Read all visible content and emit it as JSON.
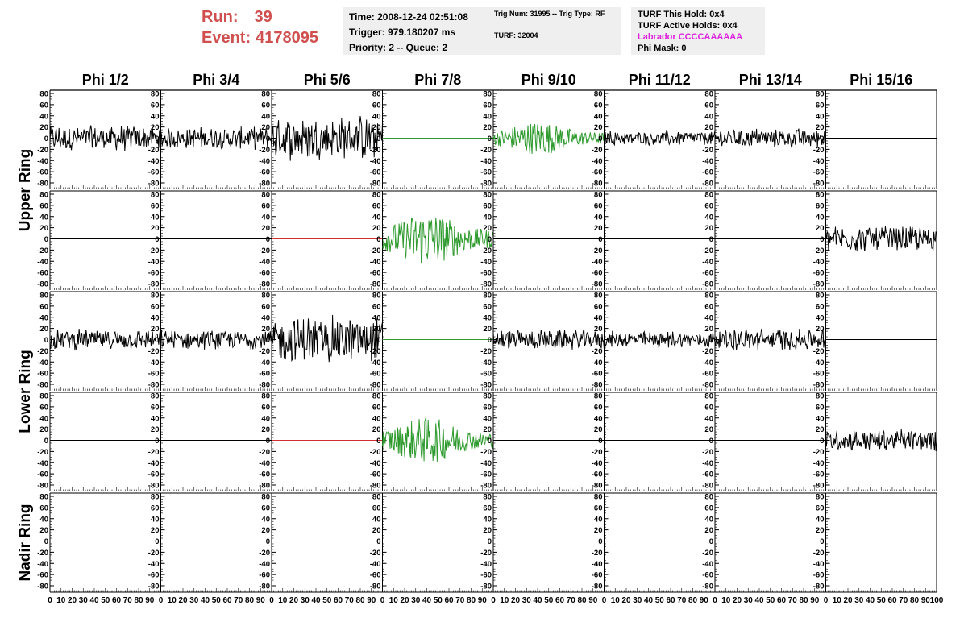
{
  "header": {
    "run_label": "Run:",
    "run_value": "39",
    "event_label": "Event:",
    "event_value": "4178095",
    "time": "Time: 2008-12-24 02:51:08",
    "trigger": "Trigger: 979.180207 ms",
    "priority": "Priority: 2 -- Queue: 2",
    "trig_num": "Trig Num: 31995 -- Trig Type: RF",
    "turf": "TURF: 32004",
    "turf_this_hold": "TURF This Hold: 0x4",
    "turf_active_holds": "TURF Active Holds: 0x4",
    "labrador": "Labrador CCCCAAAAAA",
    "phi_mask": "Phi Mask: 0"
  },
  "colors": {
    "run_text": "#d05050",
    "labrador_text": "#dd22dd",
    "green_trace": "#2e9a2e",
    "red_trace": "#d03030",
    "black_trace": "#000000",
    "info_box_bg": "#efefef"
  },
  "chart_data": {
    "type": "line",
    "columns": [
      "Phi 1/2",
      "Phi 3/4",
      "Phi 5/6",
      "Phi 7/8",
      "Phi 9/10",
      "Phi 11/12",
      "Phi 13/14",
      "Phi 15/16"
    ],
    "ring_labels": [
      "Upper Ring",
      "Lower Ring",
      "Nadir Ring"
    ],
    "rows_per_ring": [
      2,
      2,
      1
    ],
    "ylim": [
      -80,
      80
    ],
    "yticks": [
      "80",
      "60",
      "40",
      "20",
      "0",
      "-20",
      "-40",
      "-60",
      "-80"
    ],
    "xlim": [
      0,
      100
    ],
    "xtick_labels": [
      "0",
      "10",
      "20",
      "30",
      "40",
      "50",
      "60",
      "70",
      "80",
      "90",
      "100"
    ],
    "panels": [
      [
        "black:14",
        "black:12",
        "black:24",
        "green:0",
        "green:16",
        "black:8",
        "black:11",
        "black:0"
      ],
      [
        "black:0",
        "black:0",
        "red:0",
        "green:26",
        "black:0",
        "black:0",
        "black:0",
        "black:14"
      ],
      [
        "black:11",
        "black:10",
        "black:26",
        "green:0",
        "black:11",
        "black:9",
        "black:12",
        "black:0"
      ],
      [
        "black:0",
        "black:0",
        "red:0",
        "green:22",
        "black:0",
        "black:0",
        "black:0",
        "black:12"
      ],
      [
        "black:0",
        "black:0",
        "black:0",
        "black:0",
        "black:0",
        "black:0",
        "black:0",
        "black:0"
      ]
    ]
  }
}
